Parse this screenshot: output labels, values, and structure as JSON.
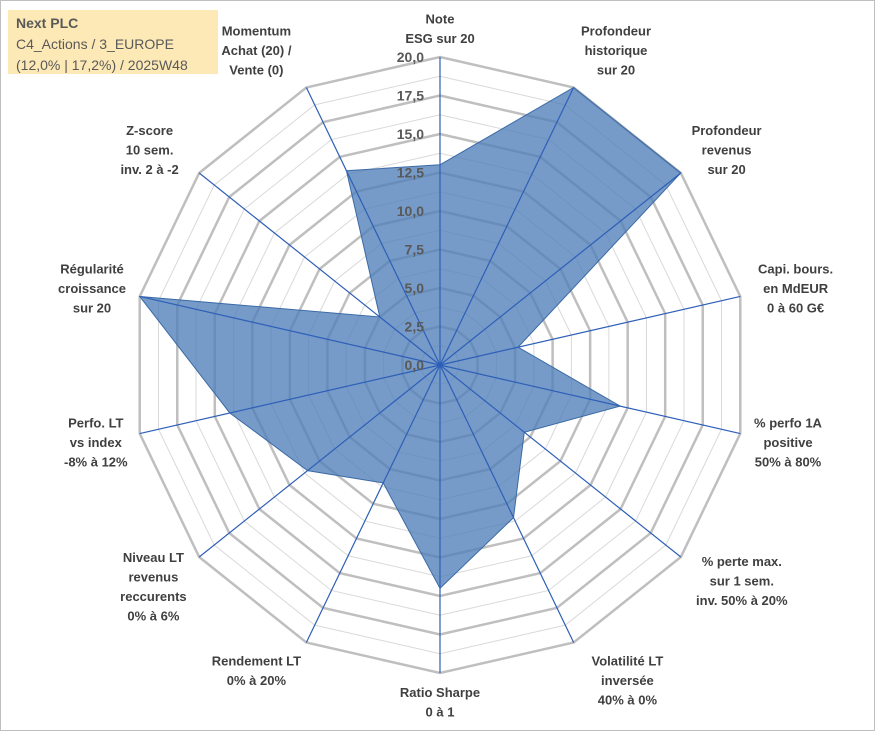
{
  "title_box": {
    "line1": "Next PLC",
    "line2": "C4_Actions / 3_EUROPE",
    "line3": "(12,0% | 17,2%) / 2025W48"
  },
  "colors": {
    "fill": "#4f7fb8",
    "spoke": "#2e5fb8",
    "ring_major": "#bfbfbf",
    "ring_minor": "#d9d9d9",
    "title_bg": "#fde9b6"
  },
  "chart_data": {
    "type": "radar",
    "ylim": [
      0,
      20
    ],
    "ticks": [
      "0,0",
      "2,5",
      "5,0",
      "7,5",
      "10,0",
      "12,5",
      "15,0",
      "17,5",
      "20,0"
    ],
    "categories": [
      [
        "Note",
        "ESG sur 20"
      ],
      [
        "Profondeur",
        "historique",
        "sur 20"
      ],
      [
        "Profondeur",
        "revenus",
        "sur 20"
      ],
      [
        "Capi. bours.",
        "en MdEUR",
        "0 à 60 G€"
      ],
      [
        "% perfo 1A",
        "positive",
        "50% à 80%"
      ],
      [
        "% perte max.",
        "sur 1 sem.",
        "inv. 50% à 20%"
      ],
      [
        "Volatilité LT",
        "inversée",
        "40% à 0%"
      ],
      [
        "Ratio Sharpe",
        "0 à 1"
      ],
      [
        "Rendement LT",
        "0% à 20%"
      ],
      [
        "Niveau LT",
        "revenus",
        "reccurents",
        "0% à 6%"
      ],
      [
        "Perfo. LT",
        "vs index",
        "-8% à 12%"
      ],
      [
        "Régularité",
        "croissance",
        "sur 20"
      ],
      [
        "Z-score",
        "10 sem.",
        "inv. 2 à -2"
      ],
      [
        "Momentum",
        "Achat (20) /",
        "Vente (0)"
      ]
    ],
    "series": [
      {
        "name": "Next PLC",
        "values": [
          13.0,
          20.0,
          20.0,
          5.2,
          12.0,
          7.0,
          11.0,
          14.5,
          8.5,
          11.0,
          14.0,
          20.0,
          5.0,
          14.0
        ]
      }
    ]
  }
}
